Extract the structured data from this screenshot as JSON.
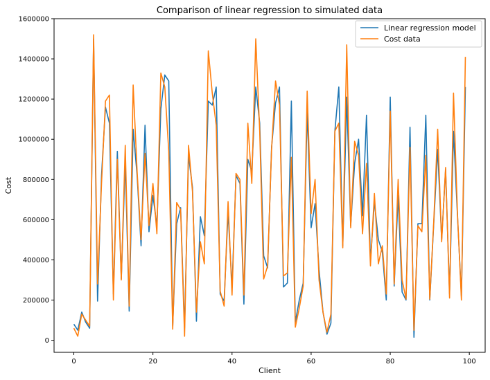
{
  "chart_data": {
    "type": "line",
    "title": "Comparison of linear regression to simulated data",
    "xlabel": "Client",
    "ylabel": "Cost",
    "xlim": [
      -5,
      104
    ],
    "ylim": [
      -60000,
      1600000
    ],
    "xticks": [
      0,
      20,
      40,
      60,
      80,
      100
    ],
    "xtick_labels": [
      "0",
      "20",
      "40",
      "60",
      "80",
      "100"
    ],
    "yticks": [
      0,
      200000,
      400000,
      600000,
      800000,
      1000000,
      1200000,
      1400000,
      1600000
    ],
    "ytick_labels": [
      "0",
      "200000",
      "400000",
      "600000",
      "800000",
      "1000000",
      "1200000",
      "1400000",
      "1600000"
    ],
    "grid": false,
    "legend_position": "top-right",
    "x": [
      0,
      1,
      2,
      3,
      4,
      5,
      6,
      7,
      8,
      9,
      10,
      11,
      12,
      13,
      14,
      15,
      16,
      17,
      18,
      19,
      20,
      21,
      22,
      23,
      24,
      25,
      26,
      27,
      28,
      29,
      30,
      31,
      32,
      33,
      34,
      35,
      36,
      37,
      38,
      39,
      40,
      41,
      42,
      43,
      44,
      45,
      46,
      47,
      48,
      49,
      50,
      51,
      52,
      53,
      54,
      55,
      56,
      57,
      58,
      59,
      60,
      61,
      62,
      63,
      64,
      65,
      66,
      67,
      68,
      69,
      70,
      71,
      72,
      73,
      74,
      75,
      76,
      77,
      78,
      79,
      80,
      81,
      82,
      83,
      84,
      85,
      86,
      87,
      88,
      89,
      90,
      91,
      92,
      93,
      94,
      95,
      96,
      97,
      98,
      99
    ],
    "series": [
      {
        "name": "Linear regression model",
        "color": "#1f77b4",
        "values": [
          80000,
          50000,
          140000,
          90000,
          60000,
          1500000,
          195000,
          820000,
          1160000,
          1080000,
          230000,
          940000,
          305000,
          890000,
          145000,
          1050000,
          820000,
          470000,
          1070000,
          540000,
          720000,
          570000,
          1150000,
          1320000,
          1290000,
          70000,
          580000,
          660000,
          60000,
          920000,
          760000,
          95000,
          615000,
          520000,
          1190000,
          1170000,
          1260000,
          230000,
          195000,
          640000,
          260000,
          820000,
          780000,
          180000,
          900000,
          840000,
          1260000,
          1080000,
          420000,
          360000,
          960000,
          1180000,
          1260000,
          265000,
          285000,
          1190000,
          90000,
          200000,
          285000,
          1140000,
          560000,
          680000,
          350000,
          140000,
          30000,
          85000,
          1040000,
          1260000,
          470000,
          1210000,
          570000,
          880000,
          1000000,
          620000,
          1120000,
          390000,
          690000,
          500000,
          440000,
          200000,
          1210000,
          270000,
          720000,
          240000,
          200000,
          1060000,
          15000,
          580000,
          580000,
          1120000,
          200000,
          580000,
          950000,
          500000,
          850000,
          230000,
          1040000,
          620000,
          220000,
          1260000
        ]
      },
      {
        "name": "Cost data",
        "color": "#ff7f0e",
        "values": [
          60000,
          20000,
          130000,
          100000,
          70000,
          1520000,
          280000,
          780000,
          1190000,
          1220000,
          200000,
          900000,
          300000,
          970000,
          170000,
          1270000,
          840000,
          500000,
          930000,
          570000,
          780000,
          530000,
          1330000,
          1260000,
          940000,
          55000,
          685000,
          650000,
          20000,
          970000,
          740000,
          140000,
          490000,
          380000,
          1440000,
          1230000,
          1070000,
          245000,
          170000,
          690000,
          225000,
          830000,
          800000,
          225000,
          1080000,
          780000,
          1500000,
          1040000,
          305000,
          370000,
          950000,
          1290000,
          1170000,
          320000,
          335000,
          910000,
          65000,
          160000,
          270000,
          1240000,
          630000,
          800000,
          300000,
          140000,
          40000,
          130000,
          1040000,
          1080000,
          460000,
          1470000,
          560000,
          990000,
          920000,
          530000,
          880000,
          370000,
          730000,
          380000,
          470000,
          230000,
          1140000,
          280000,
          800000,
          300000,
          205000,
          960000,
          50000,
          570000,
          540000,
          920000,
          205000,
          590000,
          1050000,
          490000,
          860000,
          210000,
          1230000,
          630000,
          200000,
          1410000
        ]
      }
    ]
  }
}
